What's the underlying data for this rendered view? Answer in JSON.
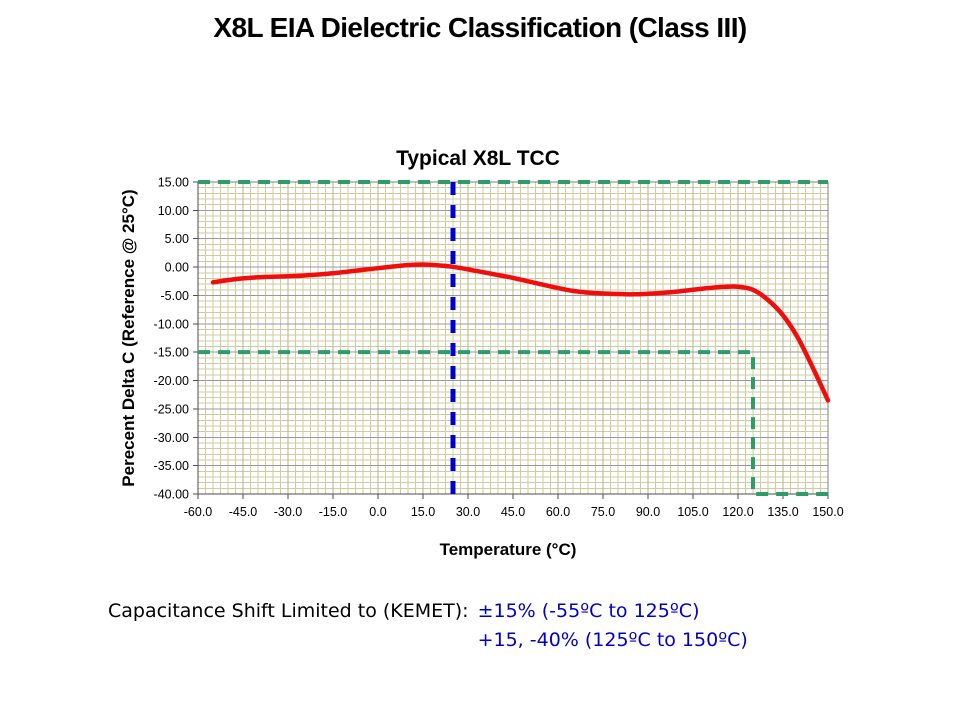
{
  "page_title": "X8L EIA Dielectric Classification (Class III)",
  "chart_data": {
    "type": "line",
    "title": "Typical X8L TCC",
    "xlabel": "Temperature (°C)",
    "ylabel": "Perecent Delta C (Reference @ 25°C)",
    "xlim": [
      -60,
      150
    ],
    "ylim": [
      -40,
      15
    ],
    "grid": true,
    "x_minor_step": 2.5,
    "y_minor_step": 1,
    "x_ticks": [
      {
        "value": -60,
        "label": "-60.0"
      },
      {
        "value": -45,
        "label": "-45.0"
      },
      {
        "value": -30,
        "label": "-30.0"
      },
      {
        "value": -15,
        "label": "-15.0"
      },
      {
        "value": 0,
        "label": "0.0"
      },
      {
        "value": 15,
        "label": "15.0"
      },
      {
        "value": 30,
        "label": "30.0"
      },
      {
        "value": 45,
        "label": "45.0"
      },
      {
        "value": 60,
        "label": "60.0"
      },
      {
        "value": 75,
        "label": "75.0"
      },
      {
        "value": 90,
        "label": "90.0"
      },
      {
        "value": 105,
        "label": "105.0"
      },
      {
        "value": 120,
        "label": "120.0"
      },
      {
        "value": 135,
        "label": "135.0"
      },
      {
        "value": 150,
        "label": "150.0"
      }
    ],
    "y_ticks": [
      {
        "value": 15,
        "label": "15.00"
      },
      {
        "value": 10,
        "label": "10.00"
      },
      {
        "value": 5,
        "label": "5.00"
      },
      {
        "value": 0,
        "label": "0.00"
      },
      {
        "value": -5,
        "label": "-5.00"
      },
      {
        "value": -10,
        "label": "-10.00"
      },
      {
        "value": -15,
        "label": "-15.00"
      },
      {
        "value": -20,
        "label": "-20.00"
      },
      {
        "value": -25,
        "label": "-25.00"
      },
      {
        "value": -30,
        "label": "-30.00"
      },
      {
        "value": -35,
        "label": "-35.00"
      },
      {
        "value": -40,
        "label": "-40.00"
      }
    ],
    "series": [
      {
        "name": "Typical X8L TCC curve",
        "color": "#F20D0D",
        "points": [
          [
            -55,
            -2.7
          ],
          [
            -50,
            -2.3
          ],
          [
            -45,
            -2.0
          ],
          [
            -40,
            -1.8
          ],
          [
            -35,
            -1.7
          ],
          [
            -30,
            -1.6
          ],
          [
            -25,
            -1.5
          ],
          [
            -20,
            -1.3
          ],
          [
            -15,
            -1.1
          ],
          [
            -10,
            -0.8
          ],
          [
            -5,
            -0.5
          ],
          [
            0,
            -0.2
          ],
          [
            5,
            0.1
          ],
          [
            10,
            0.35
          ],
          [
            15,
            0.45
          ],
          [
            20,
            0.3
          ],
          [
            25,
            0.05
          ],
          [
            30,
            -0.4
          ],
          [
            35,
            -0.9
          ],
          [
            40,
            -1.4
          ],
          [
            45,
            -1.9
          ],
          [
            50,
            -2.5
          ],
          [
            55,
            -3.1
          ],
          [
            60,
            -3.7
          ],
          [
            65,
            -4.2
          ],
          [
            70,
            -4.5
          ],
          [
            75,
            -4.65
          ],
          [
            80,
            -4.75
          ],
          [
            85,
            -4.8
          ],
          [
            90,
            -4.7
          ],
          [
            95,
            -4.55
          ],
          [
            100,
            -4.3
          ],
          [
            105,
            -4.0
          ],
          [
            110,
            -3.7
          ],
          [
            115,
            -3.5
          ],
          [
            120,
            -3.45
          ],
          [
            125,
            -4.0
          ],
          [
            130,
            -5.8
          ],
          [
            135,
            -8.5
          ],
          [
            140,
            -12.5
          ],
          [
            145,
            -17.8
          ],
          [
            150,
            -23.5
          ]
        ]
      }
    ],
    "reference_line": {
      "x": 25,
      "color": "#0000CC",
      "style": "dashed"
    },
    "limit_lines": [
      {
        "name": "upper-limit",
        "points": [
          [
            -60,
            15
          ],
          [
            150,
            15
          ]
        ]
      },
      {
        "name": "lower-limit",
        "points": [
          [
            -60,
            -15
          ],
          [
            125,
            -15
          ],
          [
            125,
            -40
          ],
          [
            150,
            -40
          ]
        ]
      }
    ],
    "limit_color": "#2E9C68",
    "legend_position": "none",
    "grid_colors": {
      "minor": "#CDCDA0",
      "major_h": "#999999",
      "major_v": "#B5B58A"
    }
  },
  "caption": {
    "label": "Capacitance Shift Limited to (KEMET):",
    "limits": [
      "±15% (-55ºC to 125ºC)",
      "+15, -40% (125ºC to 150ºC)"
    ],
    "accent_color": "#0000CC"
  }
}
